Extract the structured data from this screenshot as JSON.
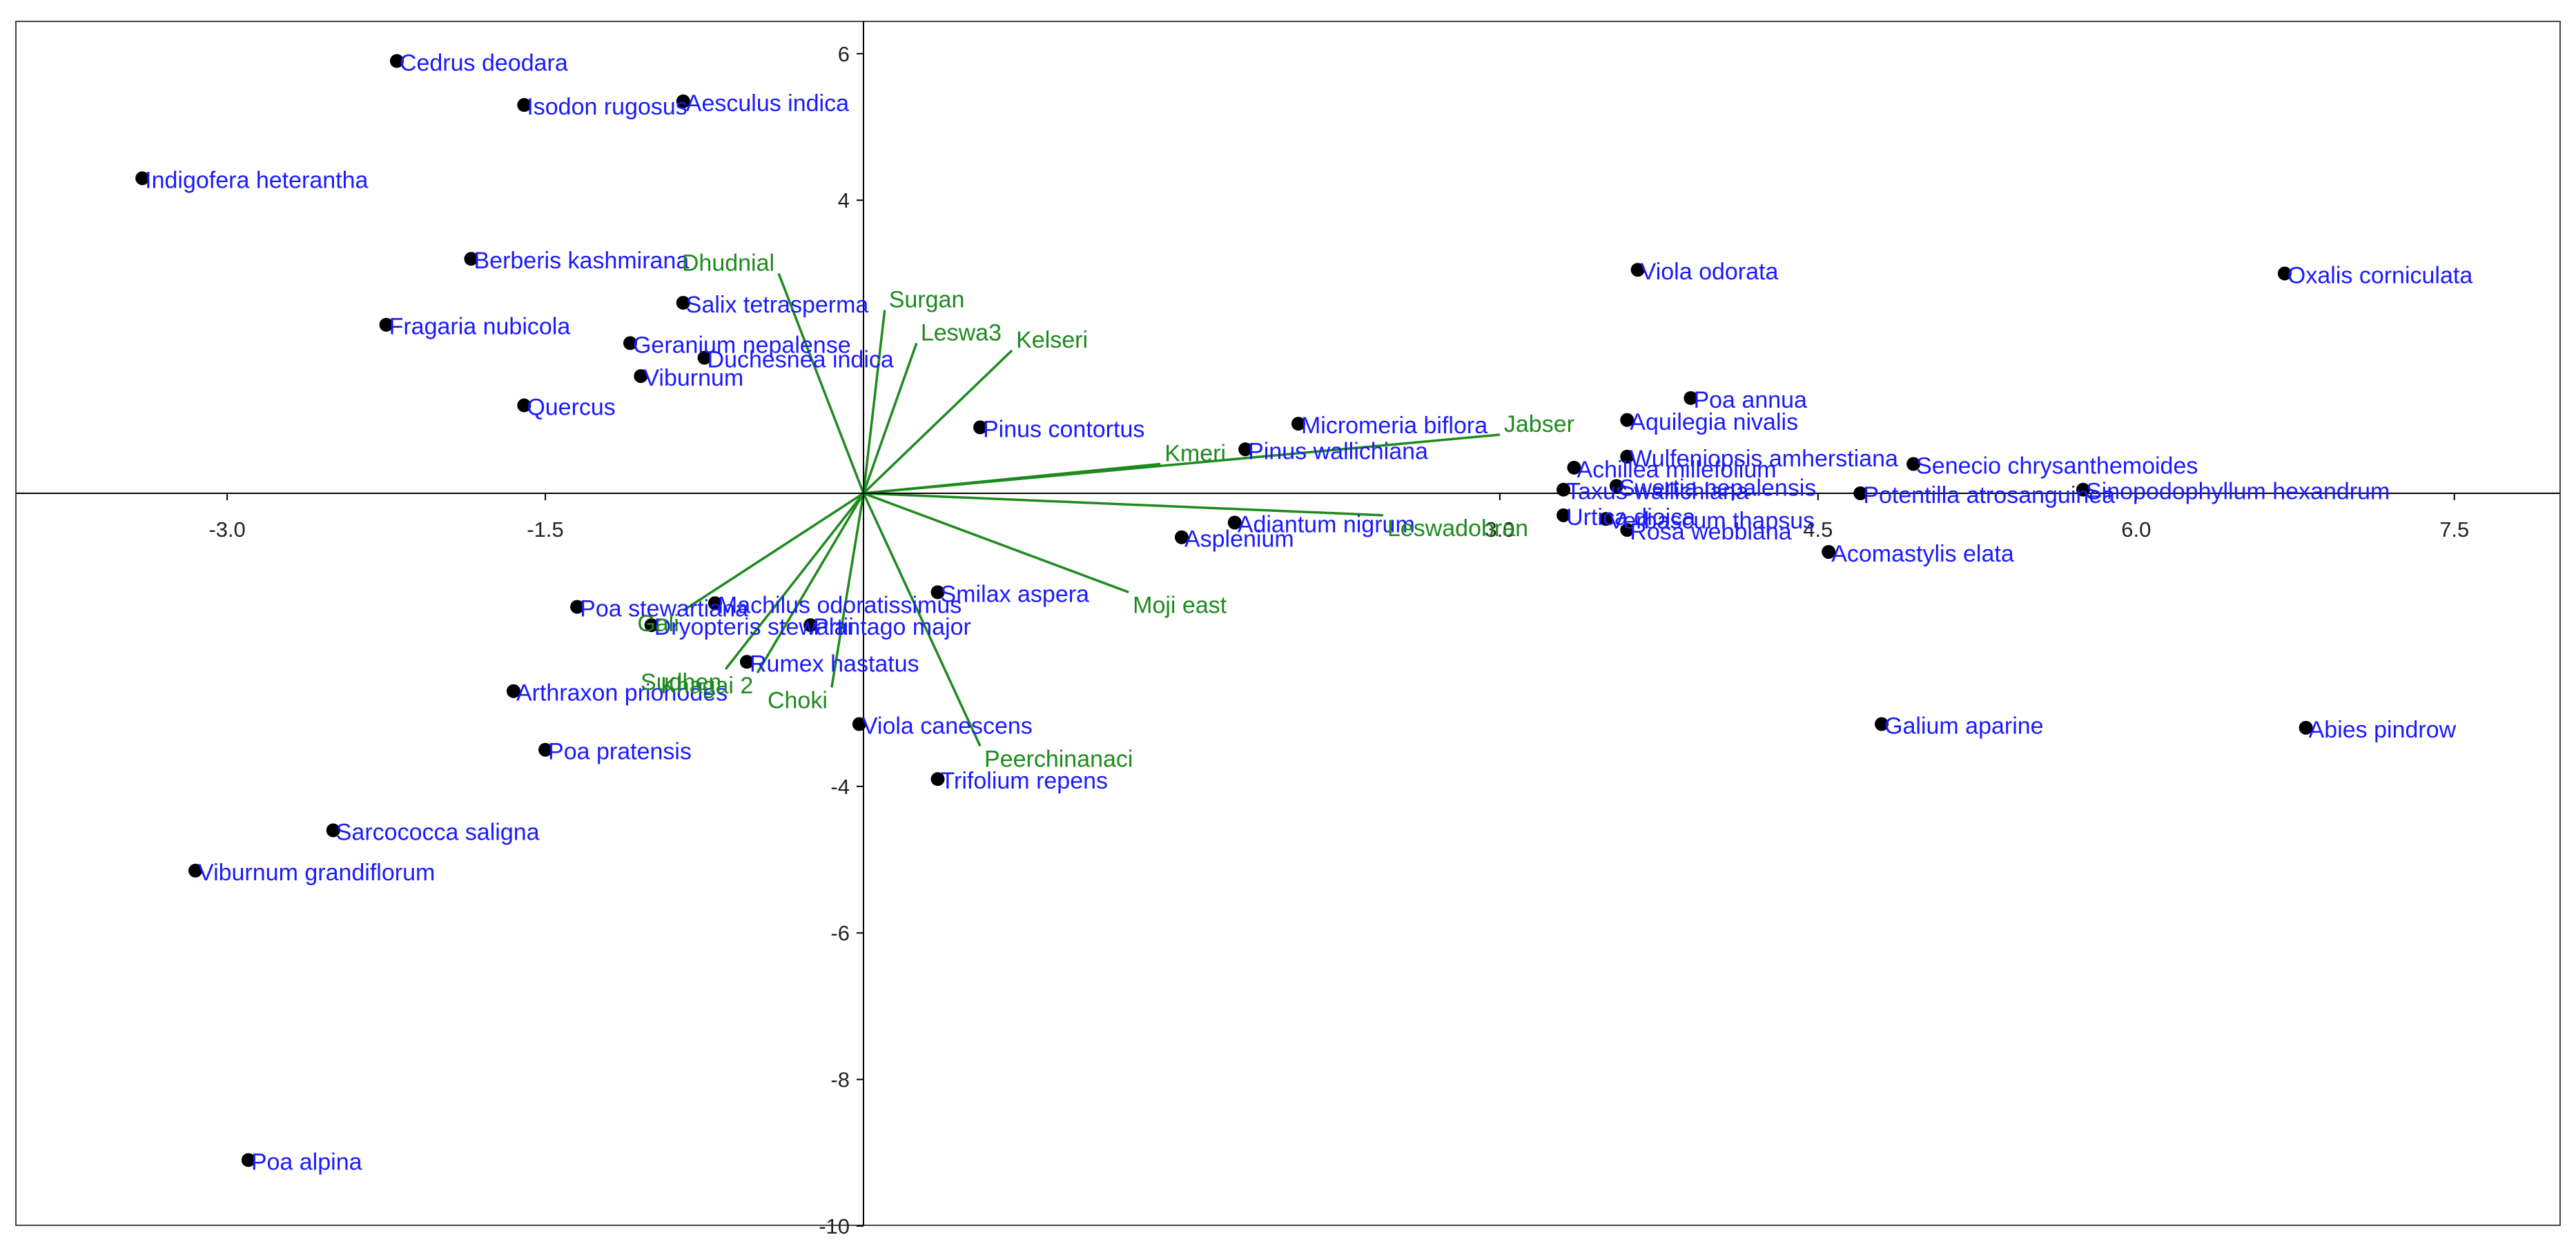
{
  "chart_data": {
    "type": "scatter",
    "title": "",
    "xlabel": "",
    "ylabel": "",
    "xlim": [
      -4.0,
      7.8
    ],
    "ylim": [
      -10,
      6.5
    ],
    "x_ticks": [
      -3.0,
      -1.5,
      3.0,
      4.5,
      6.0,
      7.5
    ],
    "x_tick_labels": [
      "-3.0",
      "-1.5",
      "3.0",
      "4.5",
      "6.0",
      "7.5"
    ],
    "y_ticks": [
      6,
      4,
      -4,
      -6,
      -8,
      -10
    ],
    "y_tick_labels": [
      "6",
      "4",
      "-4",
      "-6",
      "-8",
      "-10"
    ],
    "grid": false,
    "colors": {
      "species_point": "#000000",
      "species_label": "#1a1aff",
      "site_vector": "#1e8a1e",
      "site_label": "#1e8a1e",
      "axis": "#000000",
      "frame": "#444444"
    },
    "species": [
      {
        "label": "Cedrus deodara",
        "x": -2.2,
        "y": 5.9
      },
      {
        "label": "Isodon rugosus",
        "x": -1.6,
        "y": 5.3
      },
      {
        "label": "Aesculus indica",
        "x": -0.85,
        "y": 5.35
      },
      {
        "label": "Indigofera heterantha",
        "x": -3.4,
        "y": 4.3
      },
      {
        "label": "Berberis kashmirana",
        "x": -1.85,
        "y": 3.2
      },
      {
        "label": "Fragaria nubicola",
        "x": -2.25,
        "y": 2.3
      },
      {
        "label": "Salix tetrasperma",
        "x": -0.85,
        "y": 2.6
      },
      {
        "label": "Geranium nepalense",
        "x": -1.1,
        "y": 2.05
      },
      {
        "label": "Duchesnea indica",
        "x": -0.75,
        "y": 1.85
      },
      {
        "label": "Viburnum",
        "x": -1.05,
        "y": 1.6
      },
      {
        "label": "Quercus",
        "x": -1.6,
        "y": 1.2
      },
      {
        "label": "Pinus contortus",
        "x": 0.55,
        "y": 0.9
      },
      {
        "label": "Micromeria biflora",
        "x": 2.05,
        "y": 0.95
      },
      {
        "label": "Pinus wallichiana",
        "x": 1.8,
        "y": 0.6
      },
      {
        "label": "Viola odorata",
        "x": 3.65,
        "y": 3.05
      },
      {
        "label": "Poa annua",
        "x": 3.9,
        "y": 1.3
      },
      {
        "label": "Aquilegia nivalis",
        "x": 3.6,
        "y": 1.0
      },
      {
        "label": "Oxalis corniculata",
        "x": 6.7,
        "y": 3.0
      },
      {
        "label": "Wulfeniopsis amherstiana",
        "x": 3.6,
        "y": 0.5
      },
      {
        "label": "Achillea millefolium",
        "x": 3.35,
        "y": 0.35
      },
      {
        "label": "Senecio chrysanthemoides",
        "x": 4.95,
        "y": 0.4
      },
      {
        "label": "Taxus wallichiana",
        "x": 3.3,
        "y": 0.05
      },
      {
        "label": "Swertia nepalensis",
        "x": 3.55,
        "y": 0.1
      },
      {
        "label": "Potentilla atrosanguinea",
        "x": 4.7,
        "y": 0.0
      },
      {
        "label": "Sinopodophyllum hexandrum",
        "x": 5.75,
        "y": 0.05
      },
      {
        "label": "Urtica dioica",
        "x": 3.3,
        "y": -0.3
      },
      {
        "label": "Verbascum thapsus",
        "x": 3.5,
        "y": -0.35
      },
      {
        "label": "Rosa webbiana",
        "x": 3.6,
        "y": -0.5
      },
      {
        "label": "Acomastylis elata",
        "x": 4.55,
        "y": -0.8
      },
      {
        "label": "Adiantum nigrum",
        "x": 1.75,
        "y": -0.4
      },
      {
        "label": "Asplenium",
        "x": 1.5,
        "y": -0.6
      },
      {
        "label": "Smilax aspera",
        "x": 0.35,
        "y": -1.35
      },
      {
        "label": "Machilus odoratissimus",
        "x": -0.7,
        "y": -1.5
      },
      {
        "label": "Poa stewartiana",
        "x": -1.35,
        "y": -1.55
      },
      {
        "label": "Dryopteris stewartii",
        "x": -1.0,
        "y": -1.8
      },
      {
        "label": "Plantago major",
        "x": -0.25,
        "y": -1.8
      },
      {
        "label": "Rumex hastatus",
        "x": -0.55,
        "y": -2.3
      },
      {
        "label": "Arthraxon prionodes",
        "x": -1.65,
        "y": -2.7
      },
      {
        "label": "Viola canescens",
        "x": -0.02,
        "y": -3.15
      },
      {
        "label": "Poa pratensis",
        "x": -1.5,
        "y": -3.5
      },
      {
        "label": "Trifolium repens",
        "x": 0.35,
        "y": -3.9
      },
      {
        "label": "Galium aparine",
        "x": 4.8,
        "y": -3.15
      },
      {
        "label": "Abies pindrow",
        "x": 6.8,
        "y": -3.2
      },
      {
        "label": "Sarcococca saligna",
        "x": -2.5,
        "y": -4.6
      },
      {
        "label": "Viburnum grandiflorum",
        "x": -3.15,
        "y": -5.15
      },
      {
        "label": "Poa alpina",
        "x": -2.9,
        "y": -9.1
      }
    ],
    "sites": [
      {
        "label": "Dhudnial",
        "x": -0.4,
        "y": 3.0
      },
      {
        "label": "Surgan",
        "x": 0.1,
        "y": 2.5
      },
      {
        "label": "Leswa3",
        "x": 0.25,
        "y": 2.05
      },
      {
        "label": "Kelseri",
        "x": 0.7,
        "y": 1.95
      },
      {
        "label": "Jabser",
        "x": 3.0,
        "y": 0.8
      },
      {
        "label": "Kmeri",
        "x": 1.4,
        "y": 0.4
      },
      {
        "label": "Leswadobran",
        "x": 2.45,
        "y": -0.3
      },
      {
        "label": "Moji east",
        "x": 1.25,
        "y": -1.35
      },
      {
        "label": "Peerchinanaci",
        "x": 0.55,
        "y": -3.45
      },
      {
        "label": "Choki",
        "x": -0.15,
        "y": -2.65
      },
      {
        "label": "Khagai 2",
        "x": -0.5,
        "y": -2.45
      },
      {
        "label": "Sudhen",
        "x": -0.65,
        "y": -2.4
      },
      {
        "label": "Gali",
        "x": -0.85,
        "y": -1.6
      }
    ]
  }
}
